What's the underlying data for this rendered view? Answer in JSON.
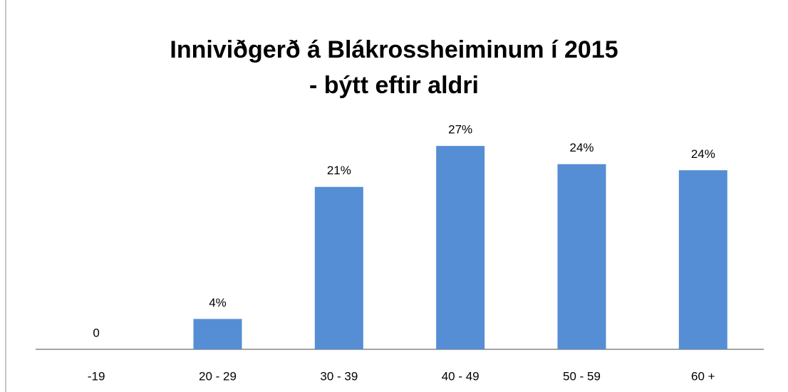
{
  "chart_data": {
    "type": "bar",
    "title": "Inniviðgerð á Blákrossheiminum  í 2015",
    "subtitle": "- býtt eftir aldri",
    "categories": [
      "-19",
      "20 - 29",
      "30 - 39",
      "40 - 49",
      "50 - 59",
      "60 +"
    ],
    "values": [
      0,
      4,
      21.4,
      26.8,
      24.4,
      23.6
    ],
    "value_labels": [
      "0",
      "4%",
      "21%",
      "27%",
      "24%",
      "24%"
    ],
    "color": "#558ed5",
    "ylim": [
      0,
      30
    ]
  }
}
